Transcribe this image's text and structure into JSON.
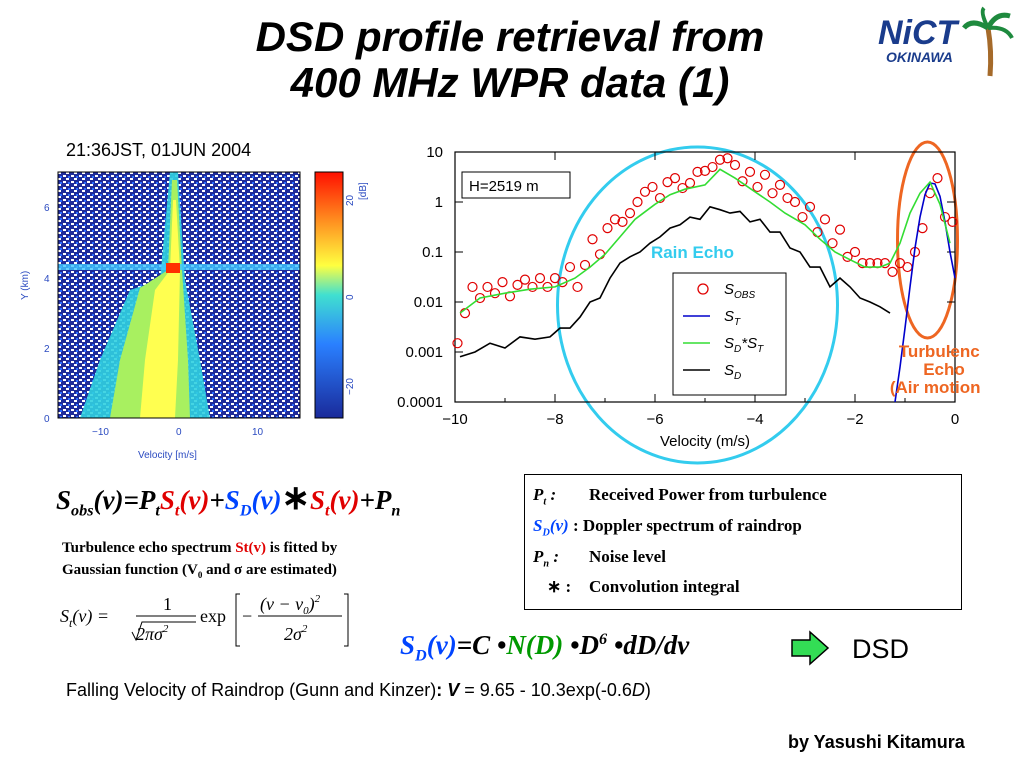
{
  "slide": {
    "title_line1": "DSD profile retrieval from",
    "title_line2": "400 MHz WPR data (1)",
    "logo_text": "NiCT",
    "logo_sub": "OKINAWA",
    "author": "by Yasushi Kitamura",
    "colors": {
      "red": "#e00000",
      "blue": "#0044ff",
      "green": "#009900",
      "cyan": "#33ccee",
      "orange": "#ee6622"
    }
  },
  "left_panel": {
    "timestamp": "21:36JST, 01JUN 2004",
    "ylabel": "Y (km)",
    "xlabel": "Velocity [m/s]",
    "y_ticks": [
      "0",
      "2",
      "4",
      "6"
    ],
    "x_ticks": [
      "−10",
      "0",
      "10"
    ],
    "colorbar_ticks": [
      "20",
      "0",
      "−20"
    ],
    "colorbar_unit": "[dB]"
  },
  "chart_data": {
    "type": "scatter",
    "xlabel": "Velocity (m/s)",
    "ylabel": "",
    "xlim": [
      -10,
      0
    ],
    "ylim": [
      0.0001,
      10
    ],
    "yscale": "log",
    "x_ticks": [
      "−10",
      "−8",
      "−6",
      "−4",
      "−2",
      "0"
    ],
    "y_ticks": [
      "0.0001",
      "0.001",
      "0.01",
      "0.1",
      "1",
      "10"
    ],
    "height_label": "H=2519 m",
    "annotations": {
      "rain_echo": "Rain Echo",
      "turbulence_line1": "Turbulence",
      "turbulence_line2": "Echo",
      "turbulence_line3": "(Air motion)"
    },
    "legend": [
      {
        "label": "S_OBS",
        "main": "S",
        "sub": "OBS",
        "mid": "",
        "sub2": "",
        "style": "circle",
        "color": "#e00000"
      },
      {
        "label": "S_T",
        "main": "S",
        "sub": "T",
        "mid": "",
        "sub2": "",
        "style": "line",
        "color": "#0000cc"
      },
      {
        "label": "S_D*S_T",
        "main": "S",
        "sub": "D",
        "mid": "*S",
        "sub2": "T",
        "style": "line",
        "color": "#33dd33"
      },
      {
        "label": "S_D",
        "main": "S",
        "sub": "D",
        "mid": "",
        "sub2": "",
        "style": "line",
        "color": "#000000"
      }
    ],
    "series": [
      {
        "name": "S_OBS",
        "color": "#e00000",
        "x": [
          -9.95,
          -9.8,
          -9.65,
          -9.5,
          -9.35,
          -9.2,
          -9.05,
          -8.9,
          -8.75,
          -8.6,
          -8.45,
          -8.3,
          -8.15,
          -8.0,
          -7.85,
          -7.7,
          -7.55,
          -7.4,
          -7.25,
          -7.1,
          -6.95,
          -6.8,
          -6.65,
          -6.5,
          -6.35,
          -6.2,
          -6.05,
          -5.9,
          -5.75,
          -5.6,
          -5.45,
          -5.3,
          -5.15,
          -5.0,
          -4.85,
          -4.7,
          -4.55,
          -4.4,
          -4.25,
          -4.1,
          -3.95,
          -3.8,
          -3.65,
          -3.5,
          -3.35,
          -3.2,
          -3.05,
          -2.9,
          -2.75,
          -2.6,
          -2.45,
          -2.3,
          -2.15,
          -2.0,
          -1.85,
          -1.7,
          -1.55,
          -1.4,
          -1.25,
          -1.1,
          -0.95,
          -0.8,
          -0.65,
          -0.5,
          -0.35,
          -0.2,
          -0.05
        ],
        "y": [
          0.0015,
          0.006,
          0.02,
          0.012,
          0.02,
          0.015,
          0.025,
          0.013,
          0.022,
          0.028,
          0.02,
          0.03,
          0.02,
          0.03,
          0.025,
          0.05,
          0.02,
          0.055,
          0.18,
          0.09,
          0.3,
          0.45,
          0.4,
          0.6,
          1.0,
          1.6,
          2.0,
          1.2,
          2.5,
          3.0,
          1.9,
          2.4,
          4.0,
          4.2,
          5.0,
          7.0,
          7.5,
          5.5,
          2.6,
          4.0,
          2.0,
          3.5,
          1.5,
          2.2,
          1.2,
          1.0,
          0.5,
          0.8,
          0.25,
          0.45,
          0.15,
          0.28,
          0.08,
          0.1,
          0.06,
          0.06,
          0.06,
          0.06,
          0.04,
          0.06,
          0.05,
          0.1,
          0.3,
          1.5,
          3.0,
          0.5,
          0.4
        ]
      },
      {
        "name": "S_T",
        "color": "#0000cc",
        "x": [
          -1.2,
          -1.1,
          -1.0,
          -0.9,
          -0.8,
          -0.7,
          -0.6,
          -0.5,
          -0.4,
          -0.3,
          -0.2,
          -0.1,
          0.0
        ],
        "y": [
          0.0001,
          0.0005,
          0.003,
          0.02,
          0.12,
          0.5,
          1.4,
          2.4,
          2.3,
          1.3,
          0.4,
          0.1,
          0.03
        ]
      },
      {
        "name": "S_D*S_T",
        "color": "#33dd33",
        "x": [
          -9.9,
          -9.5,
          -9.0,
          -8.5,
          -8.0,
          -7.6,
          -7.3,
          -7.0,
          -6.7,
          -6.4,
          -6.0,
          -5.7,
          -5.4,
          -5.0,
          -4.7,
          -4.4,
          -4.0,
          -3.7,
          -3.4,
          -3.0,
          -2.7,
          -2.4,
          -2.1,
          -1.8,
          -1.5,
          -1.3,
          -1.1,
          -0.9,
          -0.7,
          -0.5,
          -0.3,
          -0.1
        ],
        "y": [
          0.006,
          0.012,
          0.015,
          0.018,
          0.02,
          0.03,
          0.05,
          0.09,
          0.2,
          0.45,
          0.9,
          1.4,
          1.8,
          2.2,
          4.5,
          3.0,
          1.6,
          1.0,
          0.6,
          0.35,
          0.18,
          0.1,
          0.07,
          0.05,
          0.05,
          0.06,
          0.15,
          0.6,
          1.5,
          2.5,
          0.9,
          0.15
        ]
      },
      {
        "name": "S_D",
        "color": "#000000",
        "x": [
          -9.9,
          -9.6,
          -9.3,
          -9.0,
          -8.7,
          -8.4,
          -8.1,
          -7.9,
          -7.7,
          -7.5,
          -7.3,
          -7.1,
          -6.9,
          -6.7,
          -6.5,
          -6.3,
          -6.1,
          -5.9,
          -5.7,
          -5.5,
          -5.3,
          -5.1,
          -4.9,
          -4.7,
          -4.5,
          -4.3,
          -4.1,
          -3.9,
          -3.7,
          -3.5,
          -3.3,
          -3.1,
          -2.9,
          -2.7,
          -2.5,
          -2.3,
          -2.1,
          -1.9,
          -1.7,
          -1.5,
          -1.3
        ],
        "y": [
          0.0008,
          0.001,
          0.0015,
          0.0012,
          0.002,
          0.0018,
          0.002,
          0.003,
          0.003,
          0.005,
          0.01,
          0.012,
          0.03,
          0.06,
          0.08,
          0.1,
          0.15,
          0.2,
          0.3,
          0.35,
          0.5,
          0.45,
          0.8,
          0.7,
          0.6,
          0.65,
          0.4,
          0.45,
          0.25,
          0.25,
          0.12,
          0.1,
          0.05,
          0.05,
          0.02,
          0.03,
          0.02,
          0.012,
          0.01,
          0.008,
          0.006
        ]
      }
    ]
  },
  "equations": {
    "main": {
      "S": "S",
      "obs": "obs",
      "open": "(v)=P",
      "t": "t",
      "St": "S",
      "St_sub": "t",
      "St_v": "(v)",
      "plus1": "+",
      "Sd": "S",
      "Sd_sub": "D",
      "Sd_v": "(v)",
      "star": "∗",
      "St2": "S",
      "St2_sub": "t",
      "St2_v": "(v)",
      "plusPn": "+P",
      "n": "n"
    },
    "fit_note_a": "Turbulence echo spectrum ",
    "fit_note_st": "St(v)",
    "fit_note_b": " is fitted by",
    "fit_note_c": "Gaussian function (V",
    "fit_note_sub": "0",
    "fit_note_d": " and σ are estimated)",
    "gauss": {
      "lhs": "S",
      "lhs_sub": "t",
      "lhs_v": "(v) =",
      "num1": "1",
      "den1": "2πσ",
      "den1_sup": "2",
      "exp": "exp",
      "num2": "(v − v",
      "num2_sub": "0",
      "num2_end": ")",
      "num2_sup": "2",
      "den2": "2σ",
      "den2_sup": "2",
      "minus": "−"
    },
    "definitions": [
      {
        "sym": "P",
        "sub": "t",
        "colon": " :",
        "text": "Received Power from turbulence",
        "color": "#000"
      },
      {
        "sym": "S",
        "sub": "D",
        "extra": "(v)",
        "colon": " :",
        "text": " Doppler spectrum of raindrop",
        "color": "#0044ff"
      },
      {
        "sym": "P",
        "sub": "n",
        "colon": " :",
        "text": "Noise level",
        "color": "#000"
      },
      {
        "sym": "∗",
        "sub": "",
        "colon": " :",
        "text": "Convolution integral",
        "color": "#000"
      }
    ],
    "sd_eq": {
      "S": "S",
      "D": "D",
      "v": "(v)",
      "eqC": "=C •",
      "ND": "N(D)",
      "dot2": " •D",
      "six": "6",
      "rest": " •dD/dv"
    },
    "dsd_label": "DSD",
    "gunn_a": "Falling Velocity of Raindrop (Gunn and Kinzer)",
    "gunn_colon": ":",
    "gunn_v": "V",
    "gunn_b": " = 9.65 - 10.3exp(-0.6",
    "gunn_D": "D",
    "gunn_c": ")"
  }
}
